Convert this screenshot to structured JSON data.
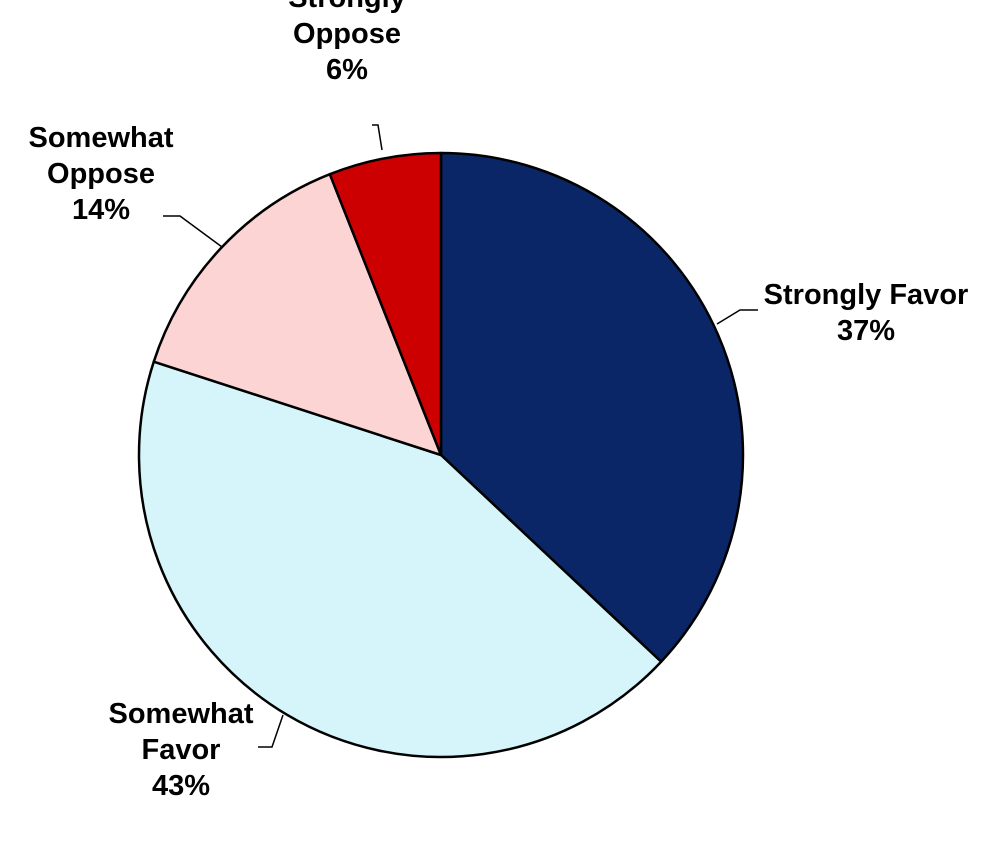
{
  "chart_data": {
    "type": "pie",
    "title": "",
    "slices": [
      {
        "label_lines": [
          "Strongly Favor"
        ],
        "value": 37,
        "value_label": "37%",
        "color": "#0a2666"
      },
      {
        "label_lines": [
          "Somewhat",
          "Favor"
        ],
        "value": 43,
        "value_label": "43%",
        "color": "#d6f5fb"
      },
      {
        "label_lines": [
          "Somewhat",
          "Oppose"
        ],
        "value": 14,
        "value_label": "14%",
        "color": "#fcd4d4"
      },
      {
        "label_lines": [
          "Strongly",
          "Oppose"
        ],
        "value": 6,
        "value_label": "6%",
        "color": "#cc0000"
      }
    ],
    "legend": "none",
    "slice_outline_color": "#000000"
  }
}
